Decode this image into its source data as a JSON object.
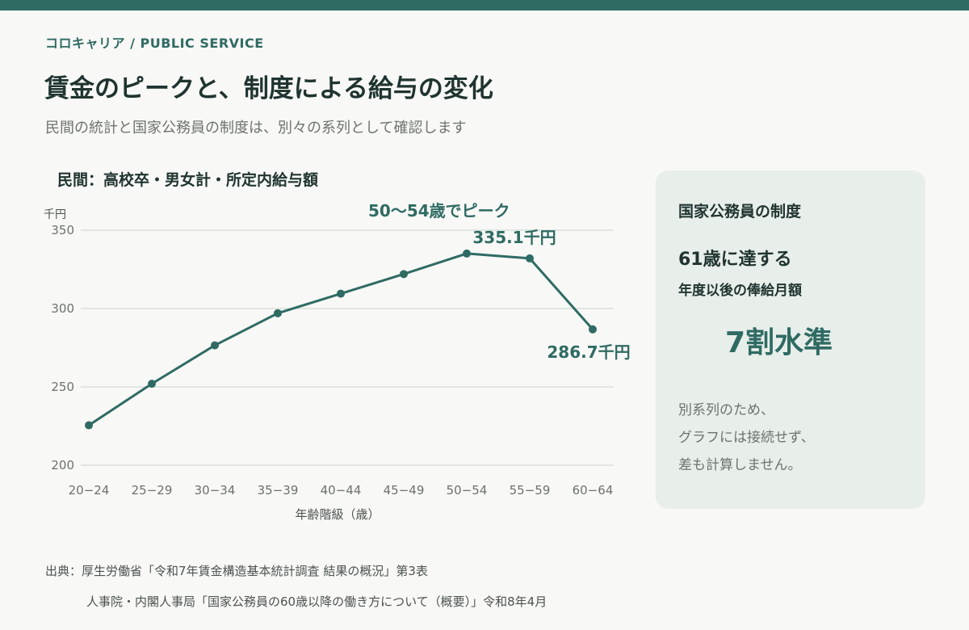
{
  "header": {
    "brand": "コロキャリア  /  PUBLIC SERVICE",
    "title": "賃金のピークと、制度による給与の変化",
    "subtitle": "民間の統計と国家公務員の制度は、別々の系列として確認します"
  },
  "colors": {
    "accent": "#2f6b63",
    "grid": "#d8e0dc",
    "card_bg": "#e8eeea"
  },
  "chart_data": {
    "type": "line",
    "title": "民間：高校卒・男女計・所定内給与額",
    "ylabel": "千円",
    "xlabel": "年齢階級（歳）",
    "categories": [
      "20−24",
      "25−29",
      "30−34",
      "35−39",
      "40−44",
      "45−49",
      "50−54",
      "55−59",
      "60−64"
    ],
    "values": [
      225.5,
      252.0,
      276.5,
      297.0,
      309.5,
      322.0,
      335.1,
      332.0,
      286.7
    ],
    "ylim": [
      200,
      350
    ],
    "yticks": [
      200,
      250,
      300,
      350
    ],
    "grid": true,
    "annotations": {
      "peak_note": "50〜54歳でピーク",
      "peak_label": "335.1千円",
      "end_label": "286.7千円"
    }
  },
  "card": {
    "heading": "国家公務員の制度",
    "age": "61歳に達する",
    "desc": "年度以後の俸給月額",
    "big": "7割水準",
    "note": [
      "別系列のため、",
      "グラフには接続せず、",
      "差も計算しません。"
    ]
  },
  "sources": {
    "line1": "出典：厚生労働省「令和7年賃金構造基本統計調査 結果の概況」第3表",
    "line2": "人事院・内閣人事局「国家公務員の60歳以降の働き方について（概要）」令和8年4月"
  }
}
